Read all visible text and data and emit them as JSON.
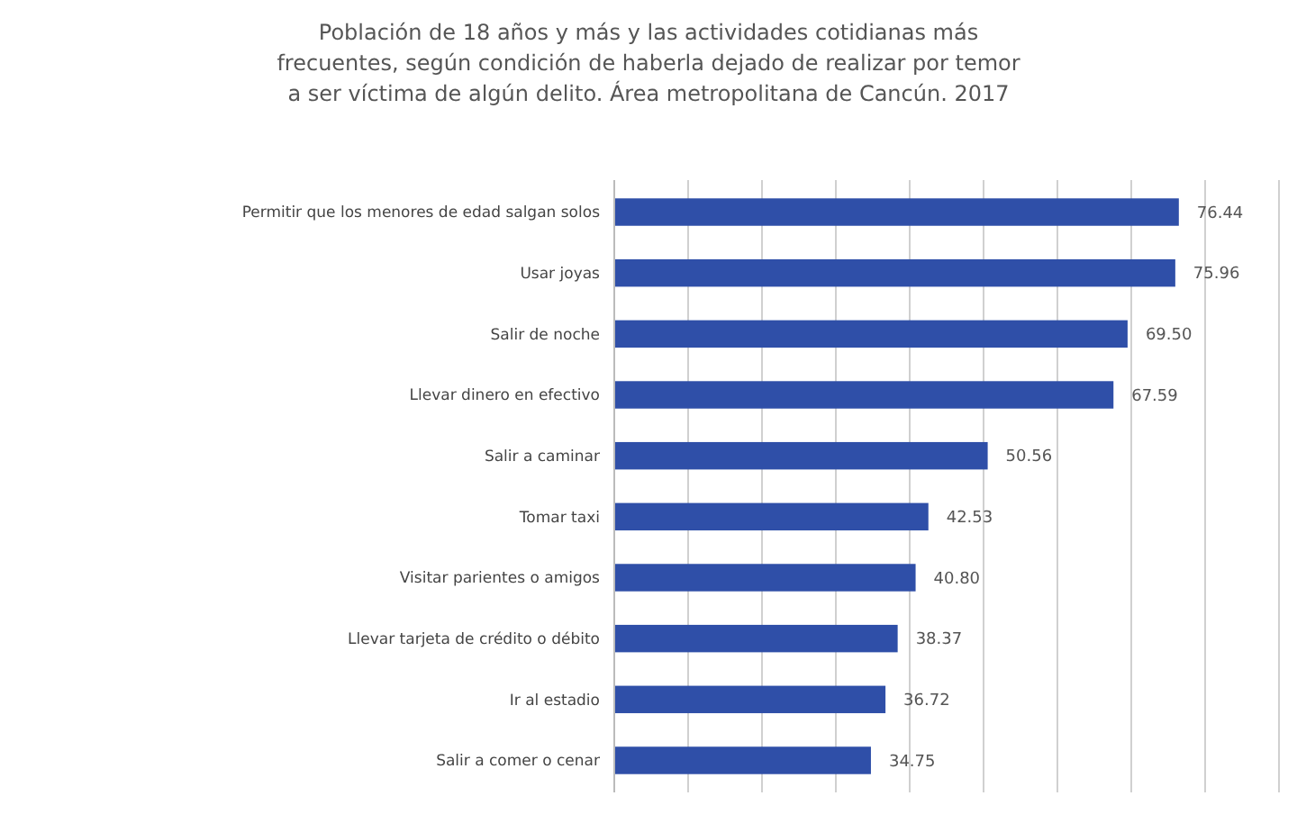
{
  "chart_data": {
    "type": "bar",
    "orientation": "horizontal",
    "title": "Población de 18 años y más y las actividades cotidianas más frecuentes, según condición de haberla dejado de realizar por temor a ser víctima de algún delito. Área metropolitana de Cancún. 2017",
    "categories": [
      "Permitir que los menores de edad salgan solos",
      "Usar joyas",
      "Salir de noche",
      "Llevar dinero en efectivo",
      "Salir a caminar",
      "Tomar taxi",
      "Visitar parientes o amigos",
      "Llevar tarjeta de crédito o débito",
      "Ir al estadio",
      "Salir a comer o cenar"
    ],
    "values": [
      76.44,
      75.96,
      69.5,
      67.59,
      50.56,
      42.53,
      40.8,
      38.37,
      36.72,
      34.75
    ],
    "value_labels": [
      "76.44",
      "75.96",
      "69.50",
      "67.59",
      "50.56",
      "42.53",
      "40.80",
      "38.37",
      "36.72",
      "34.75"
    ],
    "color": "#2f4fa8",
    "xlim": [
      0,
      90
    ],
    "xticks": [
      {
        "value": 0,
        "label": null
      },
      {
        "value": 10,
        "label": null
      },
      {
        "value": 20,
        "label": null
      },
      {
        "value": 30,
        "label": null
      },
      {
        "value": 40,
        "label": null
      },
      {
        "value": 50,
        "label": null
      },
      {
        "value": 60,
        "label": null
      },
      {
        "value": 70,
        "label": null
      },
      {
        "value": 80,
        "label": null
      },
      {
        "value": 90,
        "label": null
      }
    ],
    "grid": "x",
    "tick_labels": "y"
  }
}
